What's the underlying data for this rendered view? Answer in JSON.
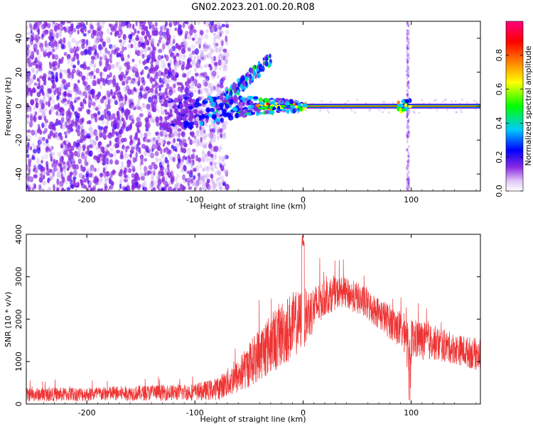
{
  "title": "GN02.2023.201.00.20.R08",
  "chart_data": [
    {
      "type": "heatmap",
      "xlabel": "Height of straight line (km)",
      "ylabel": "Frequency (Hz)",
      "xlim": [
        -256,
        164
      ],
      "ylim": [
        -50,
        50
      ],
      "xticks": [
        -200,
        -100,
        0,
        100
      ],
      "yticks": [
        -40,
        -20,
        0,
        20,
        40
      ],
      "grid": false,
      "colorbar": {
        "label": "Normalized spectral amplitude",
        "range": [
          0,
          1
        ],
        "ticks": [
          "0.0",
          "0.2",
          "0.4",
          "0.6",
          "0.8"
        ],
        "colormap": [
          "#ffffff",
          "#e0c4f8",
          "#8a2be2",
          "#0000ff",
          "#00c8ff",
          "#00ff00",
          "#ffff00",
          "#ff8000",
          "#ff0000",
          "#ff007f"
        ]
      },
      "features": {
        "noise_region_x": [
          -256,
          -70
        ],
        "carrier_frequency": 0,
        "carrier_x": [
          -45,
          164
        ],
        "carrier_amplitude_peak": 0.85,
        "vertical_band_x": 97
      }
    },
    {
      "type": "line",
      "xlabel": "Height of straight line (km)",
      "ylabel": "SNR (10 * v/v)",
      "xlim": [
        -256,
        164
      ],
      "ylim": [
        0,
        4000
      ],
      "xticks": [
        -200,
        -100,
        0,
        100
      ],
      "yticks": [
        0,
        1000,
        2000,
        3000,
        4000
      ],
      "color": "#ee3333",
      "envelope": {
        "x": [
          -256,
          -200,
          -150,
          -100,
          -80,
          -60,
          -40,
          -20,
          -10,
          0,
          20,
          35,
          50,
          70,
          90,
          100,
          120,
          140,
          164
        ],
        "mean": [
          220,
          230,
          260,
          280,
          350,
          650,
          1200,
          1650,
          1850,
          2000,
          2500,
          2650,
          2500,
          2150,
          1750,
          1550,
          1450,
          1300,
          1150
        ],
        "spread": [
          160,
          170,
          180,
          200,
          260,
          420,
          650,
          800,
          800,
          700,
          420,
          360,
          380,
          380,
          450,
          500,
          420,
          360,
          380
        ]
      }
    }
  ]
}
